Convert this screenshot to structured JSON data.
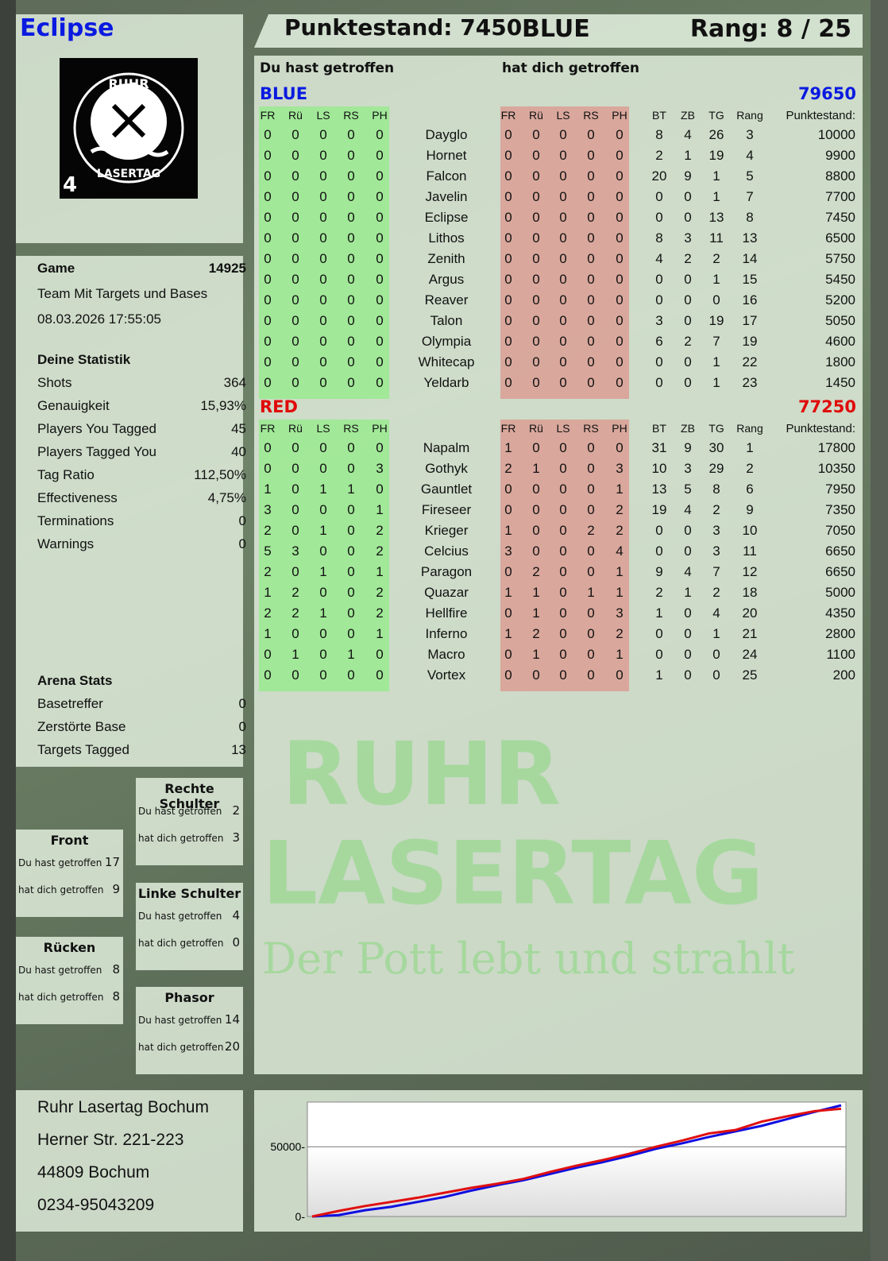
{
  "header": {
    "player": "Eclipse",
    "score_label": "Punktestand: 7450",
    "team": "BLUE",
    "rank_label": "Rang: 8 / 25",
    "logo_text": "RUHR LASERTAG",
    "logo_number": "4"
  },
  "main": {
    "hit_label": "Du hast getroffen",
    "got_label": "hat dich getroffen",
    "columns_hit": [
      "FR",
      "Rü",
      "LS",
      "RS",
      "PH"
    ],
    "columns_got": [
      "FR",
      "Rü",
      "LS",
      "RS",
      "PH"
    ],
    "columns_stats": [
      "BT",
      "ZB",
      "TG",
      "Rang"
    ],
    "score_col": "Punktestand:",
    "teams": [
      {
        "name": "BLUE",
        "total": "79650",
        "color": "#0a1ae0",
        "rows": [
          [
            "Dayglo",
            [
              0,
              0,
              0,
              0,
              0
            ],
            [
              0,
              0,
              0,
              0,
              0
            ],
            8,
            4,
            26,
            3,
            10000
          ],
          [
            "Hornet",
            [
              0,
              0,
              0,
              0,
              0
            ],
            [
              0,
              0,
              0,
              0,
              0
            ],
            2,
            1,
            19,
            4,
            9900
          ],
          [
            "Falcon",
            [
              0,
              0,
              0,
              0,
              0
            ],
            [
              0,
              0,
              0,
              0,
              0
            ],
            20,
            9,
            1,
            5,
            8800
          ],
          [
            "Javelin",
            [
              0,
              0,
              0,
              0,
              0
            ],
            [
              0,
              0,
              0,
              0,
              0
            ],
            0,
            0,
            1,
            7,
            7700
          ],
          [
            "Eclipse",
            [
              0,
              0,
              0,
              0,
              0
            ],
            [
              0,
              0,
              0,
              0,
              0
            ],
            0,
            0,
            13,
            8,
            7450
          ],
          [
            "Lithos",
            [
              0,
              0,
              0,
              0,
              0
            ],
            [
              0,
              0,
              0,
              0,
              0
            ],
            8,
            3,
            11,
            13,
            6500
          ],
          [
            "Zenith",
            [
              0,
              0,
              0,
              0,
              0
            ],
            [
              0,
              0,
              0,
              0,
              0
            ],
            4,
            2,
            2,
            14,
            5750
          ],
          [
            "Argus",
            [
              0,
              0,
              0,
              0,
              0
            ],
            [
              0,
              0,
              0,
              0,
              0
            ],
            0,
            0,
            1,
            15,
            5450
          ],
          [
            "Reaver",
            [
              0,
              0,
              0,
              0,
              0
            ],
            [
              0,
              0,
              0,
              0,
              0
            ],
            0,
            0,
            0,
            16,
            5200
          ],
          [
            "Talon",
            [
              0,
              0,
              0,
              0,
              0
            ],
            [
              0,
              0,
              0,
              0,
              0
            ],
            3,
            0,
            19,
            17,
            5050
          ],
          [
            "Olympia",
            [
              0,
              0,
              0,
              0,
              0
            ],
            [
              0,
              0,
              0,
              0,
              0
            ],
            6,
            2,
            7,
            19,
            4600
          ],
          [
            "Whitecap",
            [
              0,
              0,
              0,
              0,
              0
            ],
            [
              0,
              0,
              0,
              0,
              0
            ],
            0,
            0,
            1,
            22,
            1800
          ],
          [
            "Yeldarb",
            [
              0,
              0,
              0,
              0,
              0
            ],
            [
              0,
              0,
              0,
              0,
              0
            ],
            0,
            0,
            1,
            23,
            1450
          ]
        ]
      },
      {
        "name": "RED",
        "total": "77250",
        "color": "#e00a0a",
        "rows": [
          [
            "Napalm",
            [
              0,
              0,
              0,
              0,
              0
            ],
            [
              1,
              0,
              0,
              0,
              0
            ],
            31,
            9,
            30,
            1,
            17800
          ],
          [
            "Gothyk",
            [
              0,
              0,
              0,
              0,
              3
            ],
            [
              2,
              1,
              0,
              0,
              3
            ],
            10,
            3,
            29,
            2,
            10350
          ],
          [
            "Gauntlet",
            [
              1,
              0,
              1,
              1,
              0
            ],
            [
              0,
              0,
              0,
              0,
              1
            ],
            13,
            5,
            8,
            6,
            7950
          ],
          [
            "Fireseer",
            [
              3,
              0,
              0,
              0,
              1
            ],
            [
              0,
              0,
              0,
              0,
              2
            ],
            19,
            4,
            2,
            9,
            7350
          ],
          [
            "Krieger",
            [
              2,
              0,
              1,
              0,
              2
            ],
            [
              1,
              0,
              0,
              2,
              2
            ],
            0,
            0,
            3,
            10,
            7050
          ],
          [
            "Celcius",
            [
              5,
              3,
              0,
              0,
              2
            ],
            [
              3,
              0,
              0,
              0,
              4
            ],
            0,
            0,
            3,
            11,
            6650
          ],
          [
            "Paragon",
            [
              2,
              0,
              1,
              0,
              1
            ],
            [
              0,
              2,
              0,
              0,
              1
            ],
            9,
            4,
            7,
            12,
            6650
          ],
          [
            "Quazar",
            [
              1,
              2,
              0,
              0,
              2
            ],
            [
              1,
              1,
              0,
              1,
              1
            ],
            2,
            1,
            2,
            18,
            5000
          ],
          [
            "Hellfire",
            [
              2,
              2,
              1,
              0,
              2
            ],
            [
              0,
              1,
              0,
              0,
              3
            ],
            1,
            0,
            4,
            20,
            4350
          ],
          [
            "Inferno",
            [
              1,
              0,
              0,
              0,
              1
            ],
            [
              1,
              2,
              0,
              0,
              2
            ],
            0,
            0,
            1,
            21,
            2800
          ],
          [
            "Macro",
            [
              0,
              1,
              0,
              1,
              0
            ],
            [
              0,
              1,
              0,
              0,
              1
            ],
            0,
            0,
            0,
            24,
            1100
          ],
          [
            "Vortex",
            [
              0,
              0,
              0,
              0,
              0
            ],
            [
              0,
              0,
              0,
              0,
              0
            ],
            1,
            0,
            0,
            25,
            200
          ]
        ]
      }
    ]
  },
  "game": {
    "label": "Game",
    "id": "14925",
    "mode": "Team Mit Targets und Bases",
    "datetime": "08.03.2026 17:55:05"
  },
  "stats": {
    "title": "Deine Statistik",
    "items": [
      [
        "Shots",
        "364"
      ],
      [
        "Genauigkeit",
        "15,93%"
      ],
      [
        "Players You Tagged",
        "45"
      ],
      [
        "Players Tagged You",
        "40"
      ],
      [
        "Tag Ratio",
        "112,50%"
      ],
      [
        "Effectiveness",
        "4,75%"
      ],
      [
        "Terminations",
        "0"
      ],
      [
        "Warnings",
        "0"
      ]
    ]
  },
  "arena": {
    "title": "Arena Stats",
    "items": [
      [
        "Basetreffer",
        "0"
      ],
      [
        "Zerstörte Base",
        "0"
      ],
      [
        "Targets Tagged",
        "13"
      ]
    ]
  },
  "zones": [
    {
      "title": "Rechte Schulter",
      "hit_label": "Du hast getroffen",
      "hit": "2",
      "got_label": "hat dich getroffen",
      "got": "3"
    },
    {
      "title": "Front",
      "hit_label": "Du hast getroffen",
      "hit": "17",
      "got_label": "hat dich getroffen",
      "got": "9"
    },
    {
      "title": "Linke Schulter",
      "hit_label": "Du hast getroffen",
      "hit": "4",
      "got_label": "hat dich getroffen",
      "got": "0"
    },
    {
      "title": "Rücken",
      "hit_label": "Du hast getroffen",
      "hit": "8",
      "got_label": "hat dich getroffen",
      "got": "8"
    },
    {
      "title": "Phasor",
      "hit_label": "Du hast getroffen",
      "hit": "14",
      "got_label": "hat dich getroffen",
      "got": "20"
    }
  ],
  "address": [
    "Ruhr Lasertag Bochum",
    "Herner Str. 221-223",
    "44809 Bochum",
    "0234-95043209"
  ],
  "watermark": {
    "line1": "RUHR",
    "line2": "LASERTAG",
    "line3": "Der Pott lebt und strahlt"
  },
  "chart_data": {
    "type": "line",
    "ylim": [
      0,
      82000
    ],
    "yticks": [
      "0",
      "50000"
    ],
    "grid": true,
    "x": [
      0,
      1,
      2,
      3,
      4,
      5,
      6,
      7,
      8,
      9,
      10,
      11,
      12,
      13,
      14,
      15,
      16,
      17,
      18,
      19,
      20
    ],
    "series": [
      {
        "color": "#1010e0",
        "values": [
          0,
          1000,
          4500,
          7000,
          10500,
          14000,
          18500,
          22500,
          26000,
          30500,
          35000,
          39000,
          43500,
          48500,
          52500,
          57000,
          61000,
          65000,
          70000,
          75000,
          79650
        ]
      },
      {
        "color": "#e01010",
        "values": [
          0,
          4000,
          7500,
          10500,
          13500,
          17000,
          20500,
          23500,
          27000,
          32000,
          36500,
          40500,
          45000,
          50000,
          54500,
          59500,
          62000,
          68000,
          72000,
          75500,
          77250
        ]
      }
    ]
  }
}
